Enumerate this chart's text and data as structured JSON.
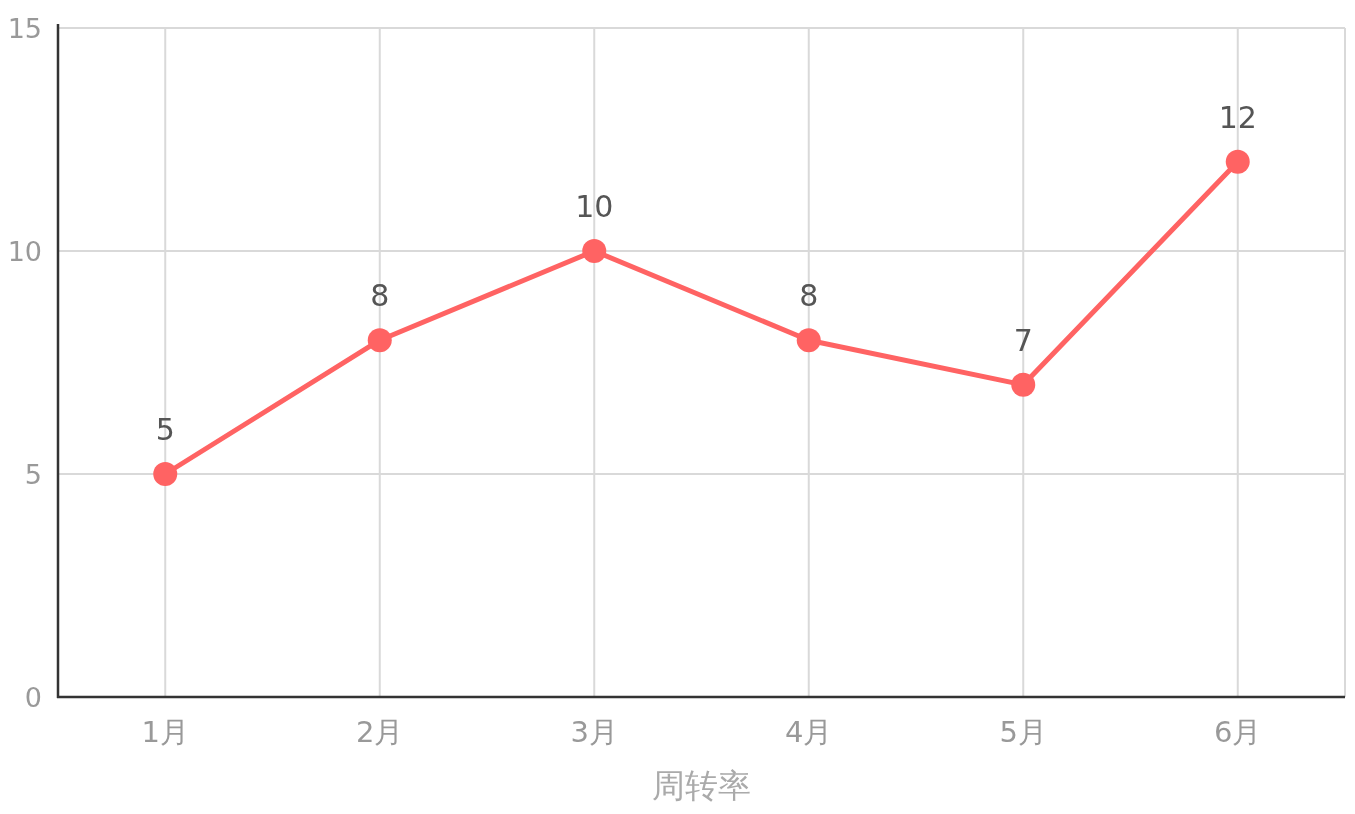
{
  "chart_data": {
    "type": "line",
    "xlabel": "周转率",
    "categories": [
      "1月",
      "2月",
      "3月",
      "4月",
      "5月",
      "6月"
    ],
    "values": [
      5,
      8,
      10,
      8,
      7,
      12
    ],
    "color": "#ff6363",
    "ylim": [
      0,
      15
    ],
    "yticks": [
      0,
      5,
      10,
      15
    ],
    "grid": true,
    "marker": "circle",
    "data_labels": true
  }
}
